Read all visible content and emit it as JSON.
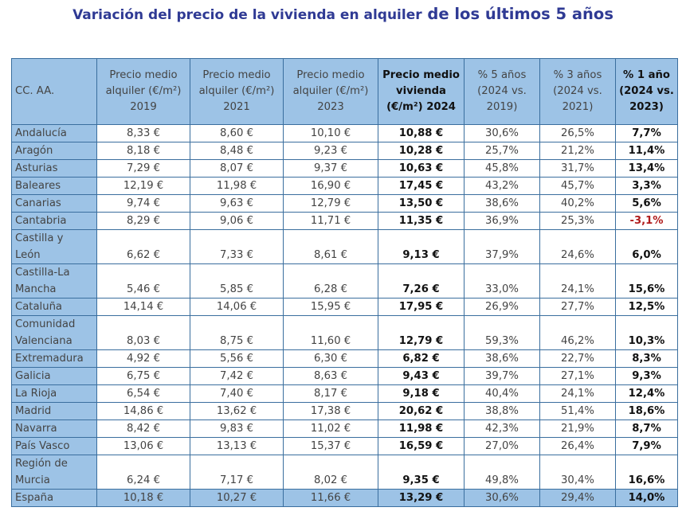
{
  "title": {
    "part1": "Variación del precio de la vivienda en alquiler",
    "part2": " de los últimos 5 años"
  },
  "colors": {
    "header_bg": "#9dc3e6",
    "border": "#3a6e9e",
    "title": "#2f3a94",
    "negative": "#b01c1c"
  },
  "table": {
    "headers": [
      "CC. AA.",
      "Precio medio alquiler (€/m²) 2019",
      "Precio medio alquiler (€/m²) 2021",
      "Precio medio alquiler (€/m²) 2023",
      "Precio medio vivienda (€/m²) 2024",
      "% 5 años (2024 vs. 2019)",
      "% 3 años (2024 vs. 2021)",
      "% 1 año (2024 vs. 2023)"
    ],
    "rows": [
      [
        "Andalucía",
        "8,33 €",
        "8,60 €",
        "10,10 €",
        "10,88 €",
        "30,6%",
        "26,5%",
        "7,7%"
      ],
      [
        "Aragón",
        "8,18 €",
        "8,48 €",
        "9,23 €",
        "10,28 €",
        "25,7%",
        "21,2%",
        "11,4%"
      ],
      [
        "Asturias",
        "7,29 €",
        "8,07 €",
        "9,37 €",
        "10,63 €",
        "45,8%",
        "31,7%",
        "13,4%"
      ],
      [
        "Baleares",
        "12,19 €",
        "11,98 €",
        "16,90 €",
        "17,45 €",
        "43,2%",
        "45,7%",
        "3,3%"
      ],
      [
        "Canarias",
        "9,74 €",
        "9,63 €",
        "12,79 €",
        "13,50 €",
        "38,6%",
        "40,2%",
        "5,6%"
      ],
      [
        "Cantabria",
        "8,29 €",
        "9,06 €",
        "11,71 €",
        "11,35 €",
        "36,9%",
        "25,3%",
        "-3,1%"
      ],
      [
        "Castilla y León",
        "6,62 €",
        "7,33 €",
        "8,61 €",
        "9,13 €",
        "37,9%",
        "24,6%",
        "6,0%"
      ],
      [
        "Castilla-La Mancha",
        "5,46 €",
        "5,85 €",
        "6,28 €",
        "7,26 €",
        "33,0%",
        "24,1%",
        "15,6%"
      ],
      [
        "Cataluña",
        "14,14 €",
        "14,06 €",
        "15,95 €",
        "17,95 €",
        "26,9%",
        "27,7%",
        "12,5%"
      ],
      [
        "Comunidad Valenciana",
        "8,03 €",
        "8,75 €",
        "11,60 €",
        "12,79 €",
        "59,3%",
        "46,2%",
        "10,3%"
      ],
      [
        "Extremadura",
        "4,92 €",
        "5,56 €",
        "6,30 €",
        "6,82 €",
        "38,6%",
        "22,7%",
        "8,3%"
      ],
      [
        "Galicia",
        "6,75 €",
        "7,42 €",
        "8,63 €",
        "9,43 €",
        "39,7%",
        "27,1%",
        "9,3%"
      ],
      [
        "La Rioja",
        "6,54 €",
        "7,40 €",
        "8,17 €",
        "9,18 €",
        "40,4%",
        "24,1%",
        "12,4%"
      ],
      [
        "Madrid",
        "14,86 €",
        "13,62 €",
        "17,38 €",
        "20,62 €",
        "38,8%",
        "51,4%",
        "18,6%"
      ],
      [
        "Navarra",
        "8,42 €",
        "9,83 €",
        "11,02 €",
        "11,98 €",
        "42,3%",
        "21,9%",
        "8,7%"
      ],
      [
        "País Vasco",
        "13,06 €",
        "13,13 €",
        "15,37 €",
        "16,59 €",
        "27,0%",
        "26,4%",
        "7,9%"
      ],
      [
        "Región de Murcia",
        "6,24 €",
        "7,17 €",
        "8,02 €",
        "9,35 €",
        "49,8%",
        "30,4%",
        "16,6%"
      ]
    ],
    "total": [
      "España",
      "10,18 €",
      "10,27 €",
      "11,66 €",
      "13,29 €",
      "30,6%",
      "29,4%",
      "14,0%"
    ]
  }
}
